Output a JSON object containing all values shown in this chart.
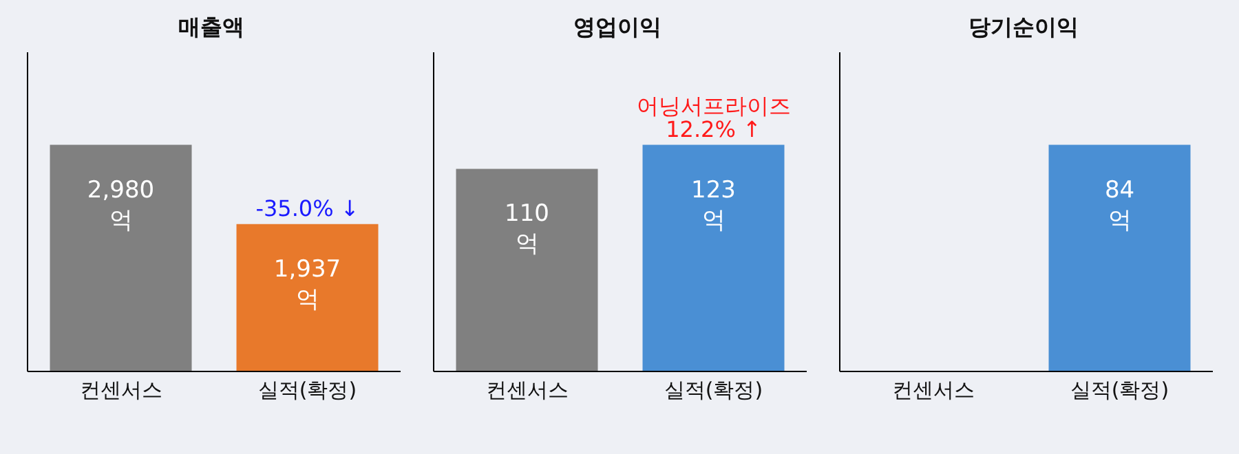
{
  "chart_data": [
    {
      "type": "bar",
      "title": "매출액",
      "categories": [
        "컨센서스",
        "실적(확정)"
      ],
      "values": [
        2980,
        1937
      ],
      "colors": [
        "#808080",
        "#e8792b"
      ],
      "value_labels": [
        "2,980\n억",
        "1,937\n억"
      ],
      "annotations": [
        "-35.0% ↓"
      ],
      "tick_labels": "x"
    },
    {
      "type": "bar",
      "title": "영업이익",
      "categories": [
        "컨센서스",
        "실적(확정)"
      ],
      "values": [
        110,
        123
      ],
      "colors": [
        "#808080",
        "#4a8fd4"
      ],
      "value_labels": [
        "110\n억",
        "123\n억"
      ],
      "annotations": [
        "어닝서프라이즈",
        "12.2% ↑"
      ],
      "tick_labels": "x"
    },
    {
      "type": "bar",
      "title": "당기순이익",
      "categories": [
        "컨센서스",
        "실적(확정)"
      ],
      "values": [
        null,
        84
      ],
      "colors": [
        "#808080",
        "#4a8fd4"
      ],
      "value_labels": [
        null,
        "84\n억"
      ],
      "tick_labels": "x"
    }
  ]
}
